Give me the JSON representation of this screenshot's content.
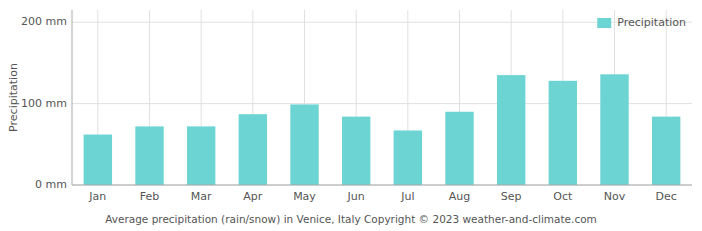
{
  "chart_data": {
    "type": "bar",
    "title": "Average precipitation (rain/snow) in Venice, Italy   Copyright © 2023  weather-and-climate.com",
    "y_label": "Precipitation",
    "categories": [
      "Jan",
      "Feb",
      "Mar",
      "Apr",
      "May",
      "Jun",
      "Jul",
      "Aug",
      "Sep",
      "Oct",
      "Nov",
      "Dec"
    ],
    "series": [
      {
        "name": "Precipitation",
        "color": "#6dd4d4",
        "values": [
          62,
          72,
          72,
          87,
          99,
          84,
          67,
          90,
          135,
          128,
          136,
          84
        ]
      }
    ],
    "ylim": [
      0,
      215
    ],
    "yticks": [
      {
        "value": 0,
        "label": "0 mm"
      },
      {
        "value": 100,
        "label": "100 mm"
      },
      {
        "value": 200,
        "label": "200 mm"
      }
    ],
    "grid": true,
    "legend": "upper right"
  }
}
